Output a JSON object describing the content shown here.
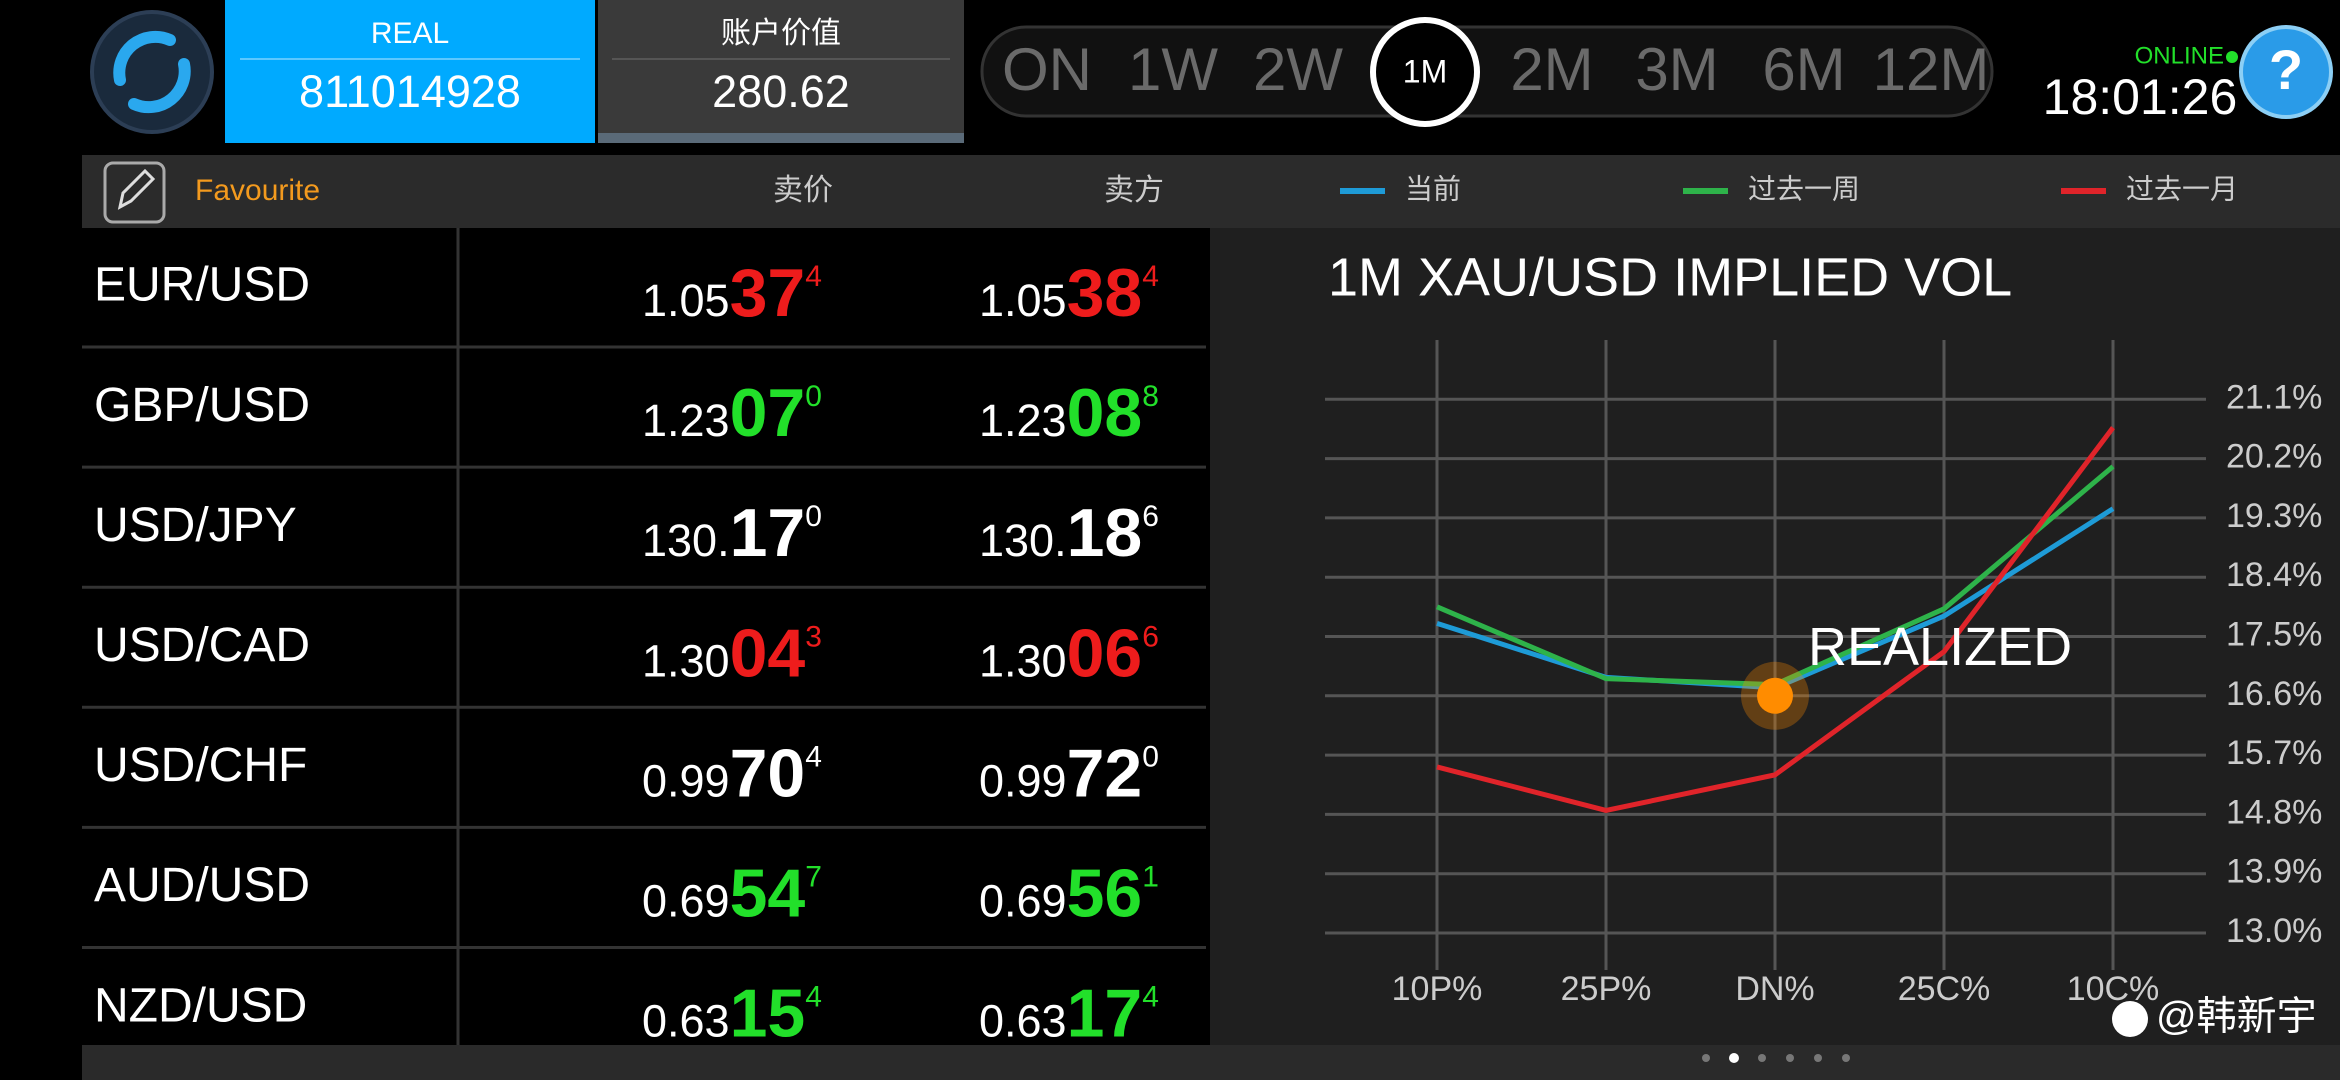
{
  "header": {
    "account_type": "REAL",
    "account_number": "811014928",
    "value_label": "账户价值",
    "value": "280.62",
    "tenors": [
      "ON",
      "1W",
      "2W",
      "1M",
      "2M",
      "3M",
      "6M",
      "12M"
    ],
    "selected_tenor": "1M",
    "status": "ONLINE",
    "time": "18:01:26",
    "help": "?"
  },
  "table": {
    "favourite": "Favourite",
    "bid_header": "卖价",
    "ask_header": "卖方",
    "rows": [
      {
        "pair": "EUR/USD",
        "color": "#ee1c1c",
        "bid": {
          "base": "1.05",
          "pips": "37",
          "frac": "4"
        },
        "ask": {
          "base": "1.05",
          "pips": "38",
          "frac": "4"
        }
      },
      {
        "pair": "GBP/USD",
        "color": "#22e02a",
        "bid": {
          "base": "1.23",
          "pips": "07",
          "frac": "0"
        },
        "ask": {
          "base": "1.23",
          "pips": "08",
          "frac": "8"
        }
      },
      {
        "pair": "USD/JPY",
        "color": "#ffffff",
        "bid": {
          "base": "130.",
          "pips": "17",
          "frac": "0"
        },
        "ask": {
          "base": "130.",
          "pips": "18",
          "frac": "6"
        }
      },
      {
        "pair": "USD/CAD",
        "color": "#ee1c1c",
        "bid": {
          "base": "1.30",
          "pips": "04",
          "frac": "3"
        },
        "ask": {
          "base": "1.30",
          "pips": "06",
          "frac": "6"
        }
      },
      {
        "pair": "USD/CHF",
        "color": "#ffffff",
        "bid": {
          "base": "0.99",
          "pips": "70",
          "frac": "4"
        },
        "ask": {
          "base": "0.99",
          "pips": "72",
          "frac": "0"
        }
      },
      {
        "pair": "AUD/USD",
        "color": "#22e02a",
        "bid": {
          "base": "0.69",
          "pips": "54",
          "frac": "7"
        },
        "ask": {
          "base": "0.69",
          "pips": "56",
          "frac": "1"
        }
      },
      {
        "pair": "NZD/USD",
        "color": "#22e02a",
        "bid": {
          "base": "0.63",
          "pips": "15",
          "frac": "4"
        },
        "ask": {
          "base": "0.63",
          "pips": "17",
          "frac": "4"
        }
      }
    ]
  },
  "chart_data": {
    "type": "line",
    "title": "1M XAU/USD IMPLIED VOL",
    "categories": [
      "10P%",
      "25P%",
      "DN%",
      "25C%",
      "10C%"
    ],
    "series": [
      {
        "name": "当前",
        "color": "#1e9bd7",
        "values": [
          17.7,
          16.88,
          16.72,
          17.81,
          19.44
        ]
      },
      {
        "name": "过去一周",
        "color": "#2eb34a",
        "values": [
          17.95,
          16.86,
          16.77,
          17.92,
          20.08
        ]
      },
      {
        "name": "过去一月",
        "color": "#e0242a",
        "values": [
          15.52,
          14.86,
          15.4,
          17.27,
          20.67
        ]
      }
    ],
    "markers": [
      {
        "label": "REALIZED",
        "category": "DN%",
        "value": 16.6,
        "color": "#ff8c00"
      }
    ],
    "ylim": [
      13.0,
      22.0
    ],
    "yticks": [
      {
        "value": 13.0,
        "label": "13.0%"
      },
      {
        "value": 13.9,
        "label": "13.9%"
      },
      {
        "value": 14.8,
        "label": "14.8%"
      },
      {
        "value": 15.7,
        "label": "15.7%"
      },
      {
        "value": 16.6,
        "label": "16.6%"
      },
      {
        "value": 17.5,
        "label": "17.5%"
      },
      {
        "value": 18.4,
        "label": "18.4%"
      },
      {
        "value": 19.3,
        "label": "19.3%"
      },
      {
        "value": 20.2,
        "label": "20.2%"
      },
      {
        "value": 21.1,
        "label": "21.1%"
      }
    ],
    "grid": true
  },
  "watermark": "@韩新宇"
}
